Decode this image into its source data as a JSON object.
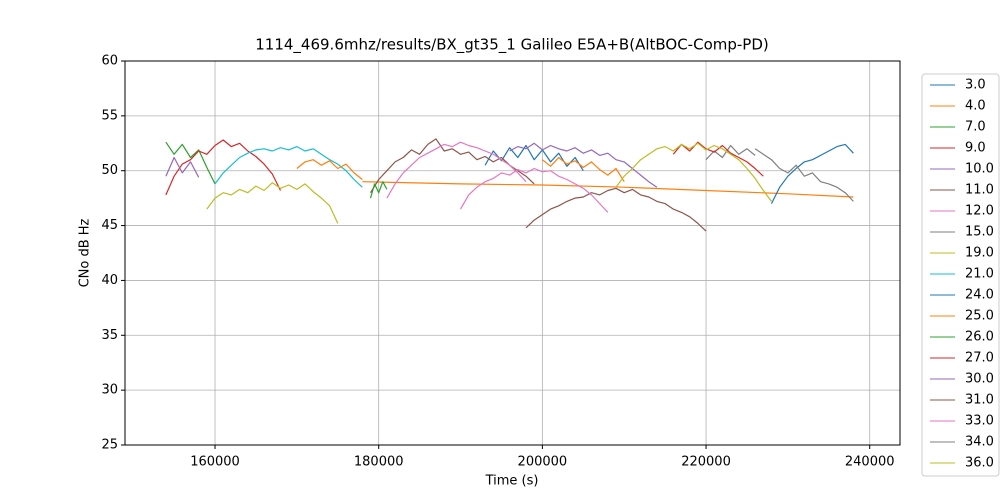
{
  "chart_data": {
    "type": "line",
    "title": "1114_469.6mhz/results/BX_gt35_1 Galileo E5A+B(AltBOC-Comp-PD)",
    "x_label": "Time (s)",
    "y_label": "CNo dB Hz",
    "xlim": [
      149000,
      243700
    ],
    "ylim": [
      25,
      60
    ],
    "xticks": [
      160000,
      180000,
      200000,
      220000,
      240000
    ],
    "yticks": [
      25,
      30,
      35,
      40,
      45,
      50,
      55,
      60
    ],
    "grid": true,
    "legend": "outside-right",
    "series": [
      {
        "name": "3.0",
        "color": "#1f77b4",
        "x": [
          193000,
          194000,
          195000,
          196000,
          197000,
          198000,
          199000,
          200000,
          201000,
          202000,
          203000,
          204000,
          205000
        ],
        "values": [
          50.5,
          51.8,
          50.9,
          52.1,
          51.2,
          52.3,
          51.0,
          51.9,
          50.8,
          51.6,
          50.4,
          51.2,
          50.0
        ]
      },
      {
        "name": "4.0",
        "color": "#ff7f0e",
        "x": [
          178000,
          190000,
          200000,
          210000,
          220000,
          230000,
          238000
        ],
        "values": [
          49.0,
          48.8,
          48.7,
          48.5,
          48.2,
          47.9,
          47.6
        ]
      },
      {
        "name": "7.0",
        "color": "#2ca02c",
        "x": [
          154000,
          155000,
          156000,
          157000,
          158000,
          159000,
          160000
        ],
        "values": [
          52.6,
          51.5,
          52.4,
          51.2,
          51.9,
          50.3,
          48.8
        ]
      },
      {
        "name": "9.0",
        "color": "#d62728",
        "x": [
          154000,
          155000,
          156000,
          157000,
          158000,
          159000,
          160000,
          161000,
          162000,
          163000,
          164000,
          165000,
          166000,
          167000,
          168000
        ],
        "values": [
          47.8,
          49.5,
          50.6,
          51.0,
          51.8,
          51.5,
          52.3,
          52.8,
          52.2,
          52.5,
          51.8,
          51.3,
          50.6,
          49.7,
          48.2
        ]
      },
      {
        "name": "10.0",
        "color": "#9467bd",
        "x": [
          154000,
          155000,
          156000,
          157000,
          158000
        ],
        "values": [
          49.5,
          51.2,
          49.8,
          50.8,
          49.4
        ]
      },
      {
        "name": "11.0",
        "color": "#8c564b",
        "x": [
          179000,
          180000,
          181000,
          182000,
          183000,
          184000,
          185000,
          186000,
          187000,
          188000,
          189000,
          190000,
          191000,
          192000,
          193000,
          194000,
          195000,
          196000,
          197000,
          198000,
          199000
        ],
        "values": [
          48.0,
          49.2,
          50.0,
          50.8,
          51.2,
          51.9,
          51.5,
          52.4,
          52.9,
          51.8,
          52.0,
          51.5,
          51.7,
          51.0,
          51.3,
          50.8,
          51.2,
          50.5,
          50.0,
          49.5,
          48.8
        ]
      },
      {
        "name": "12.0",
        "color": "#e377c2",
        "x": [
          181000,
          182000,
          183000,
          184000,
          185000,
          186000,
          187000,
          188000,
          189000,
          190000,
          191000,
          192000,
          193000,
          194000,
          195000,
          196000,
          197000,
          198000
        ],
        "values": [
          47.5,
          48.8,
          49.8,
          50.5,
          51.2,
          51.6,
          52.0,
          52.4,
          52.2,
          52.6,
          52.3,
          52.1,
          51.8,
          51.5,
          51.0,
          50.5,
          49.8,
          49.0
        ]
      },
      {
        "name": "15.0",
        "color": "#7f7f7f",
        "x": [
          220000,
          221000,
          222000,
          223000,
          224000,
          225000,
          226000
        ],
        "values": [
          51.0,
          51.8,
          51.2,
          52.3,
          51.5,
          52.0,
          51.4
        ]
      },
      {
        "name": "19.0",
        "color": "#bcbd22",
        "x": [
          159000,
          160000,
          161000,
          162000,
          163000,
          164000,
          165000,
          166000,
          167000,
          168000,
          169000,
          170000,
          171000,
          172000,
          173000,
          174000,
          175000
        ],
        "values": [
          46.5,
          47.5,
          48.0,
          47.8,
          48.3,
          48.0,
          48.6,
          48.2,
          48.9,
          48.4,
          48.7,
          48.3,
          48.8,
          48.1,
          47.5,
          46.8,
          45.2
        ]
      },
      {
        "name": "21.0",
        "color": "#17becf",
        "x": [
          160000,
          161000,
          162000,
          163000,
          164000,
          165000,
          166000,
          167000,
          168000,
          169000,
          170000,
          171000,
          172000,
          173000,
          174000,
          175000,
          176000,
          177000,
          178000
        ],
        "values": [
          48.8,
          49.8,
          50.5,
          51.2,
          51.6,
          51.9,
          52.0,
          51.8,
          52.1,
          51.9,
          52.2,
          51.8,
          52.0,
          51.5,
          51.0,
          50.6,
          50.0,
          49.2,
          48.5
        ]
      },
      {
        "name": "24.0",
        "color": "#1f77b4",
        "x": [
          228000,
          229000,
          230000,
          231000,
          232000,
          233000,
          234000,
          235000,
          236000,
          237000,
          238000
        ],
        "values": [
          47.0,
          48.5,
          49.5,
          50.2,
          50.8,
          51.0,
          51.4,
          51.8,
          52.2,
          52.4,
          51.6
        ]
      },
      {
        "name": "25.0",
        "color": "#ff7f0e",
        "x": [
          170000,
          171000,
          172000,
          173000,
          174000,
          175000,
          176000,
          177000,
          178000,
          189000,
          200000,
          201000,
          202000,
          203000,
          204000,
          205000,
          206000,
          207000,
          208000,
          209000,
          210000
        ],
        "values": [
          50.2,
          50.8,
          51.0,
          50.5,
          50.9,
          50.2,
          50.6,
          49.8,
          49.2,
          null,
          51.0,
          50.4,
          51.2,
          50.6,
          50.9,
          50.3,
          50.8,
          50.1,
          49.6,
          50.2,
          49.0
        ]
      },
      {
        "name": "26.0",
        "color": "#2ca02c",
        "x": [
          179000,
          179500,
          180000,
          180500,
          181000
        ],
        "values": [
          47.5,
          48.8,
          48.0,
          49.0,
          48.3
        ]
      },
      {
        "name": "27.0",
        "color": "#d62728",
        "x": [
          216000,
          217000,
          218000,
          219000,
          220000,
          221000,
          222000,
          223000,
          224000,
          225000,
          226000,
          227000
        ],
        "values": [
          51.5,
          52.4,
          51.8,
          52.6,
          52.0,
          51.7,
          52.3,
          51.6,
          51.2,
          50.8,
          50.2,
          49.5
        ]
      },
      {
        "name": "30.0",
        "color": "#9467bd",
        "x": [
          196000,
          197000,
          198000,
          199000,
          200000,
          201000,
          202000,
          203000,
          204000,
          205000,
          206000,
          207000,
          208000,
          209000,
          210000,
          211000,
          212000,
          213000,
          214000
        ],
        "values": [
          51.8,
          52.2,
          52.0,
          52.5,
          51.9,
          52.3,
          52.0,
          51.8,
          52.1,
          51.6,
          51.9,
          51.4,
          51.6,
          51.0,
          50.8,
          50.2,
          49.6,
          49.0,
          48.5
        ]
      },
      {
        "name": "31.0",
        "color": "#8c564b",
        "x": [
          198000,
          199000,
          200000,
          201000,
          202000,
          203000,
          204000,
          205000,
          206000,
          207000,
          208000,
          209000,
          210000,
          211000,
          212000,
          213000,
          214000,
          215000,
          216000,
          217000,
          218000,
          219000,
          220000
        ],
        "values": [
          44.8,
          45.5,
          46.0,
          46.5,
          46.8,
          47.2,
          47.5,
          47.6,
          48.0,
          47.8,
          48.2,
          48.4,
          48.0,
          48.3,
          47.8,
          47.6,
          47.2,
          47.0,
          46.5,
          46.2,
          45.8,
          45.2,
          44.5
        ]
      },
      {
        "name": "33.0",
        "color": "#e377c2",
        "x": [
          190000,
          191000,
          192000,
          193000,
          194000,
          195000,
          196000,
          197000,
          198000,
          199000,
          200000,
          201000,
          202000,
          203000,
          204000,
          205000,
          206000,
          207000,
          208000
        ],
        "values": [
          46.5,
          47.8,
          48.5,
          49.0,
          49.3,
          49.8,
          49.6,
          50.1,
          49.8,
          50.2,
          49.9,
          50.0,
          49.5,
          49.2,
          48.8,
          48.4,
          47.8,
          47.0,
          46.2
        ]
      },
      {
        "name": "34.0",
        "color": "#7f7f7f",
        "x": [
          226000,
          227000,
          228000,
          229000,
          230000,
          231000,
          232000,
          233000,
          234000,
          235000,
          236000,
          237000,
          238000
        ],
        "values": [
          52.0,
          51.5,
          51.0,
          50.2,
          49.8,
          50.5,
          49.5,
          49.8,
          49.0,
          48.8,
          48.5,
          48.0,
          47.2
        ]
      },
      {
        "name": "36.0",
        "color": "#bcbd22",
        "x": [
          209000,
          210000,
          211000,
          212000,
          213000,
          214000,
          215000,
          216000,
          217000,
          218000,
          219000,
          220000,
          221000,
          222000,
          223000,
          224000,
          225000,
          226000,
          227000,
          228000
        ],
        "values": [
          48.5,
          49.5,
          50.2,
          51.0,
          51.5,
          52.0,
          52.2,
          51.8,
          52.4,
          52.0,
          52.5,
          51.9,
          52.3,
          52.0,
          51.5,
          51.0,
          50.2,
          49.3,
          48.2,
          47.2
        ]
      }
    ]
  }
}
